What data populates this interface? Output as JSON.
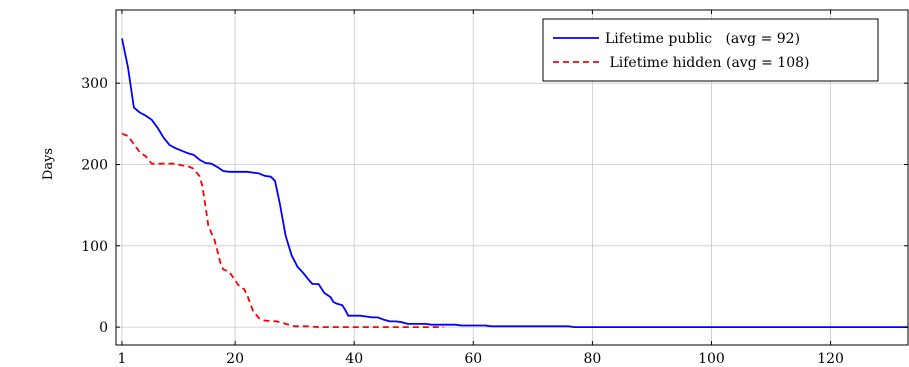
{
  "chart_data": {
    "type": "line",
    "title": "",
    "xlabel": "",
    "ylabel": "Days",
    "xlim": [
      0,
      133
    ],
    "ylim": [
      -22,
      390
    ],
    "xticks": [
      1,
      20,
      40,
      60,
      80,
      100,
      120
    ],
    "yticks": [
      0,
      100,
      200,
      300
    ],
    "grid": true,
    "legend_position": "top-right",
    "series": [
      {
        "name": "Lifetime public   (avg = 92)",
        "color": "#0000ff",
        "dash": "solid",
        "points": [
          [
            1,
            355
          ],
          [
            2,
            320
          ],
          [
            3,
            270
          ],
          [
            4,
            264
          ],
          [
            5,
            260
          ],
          [
            6,
            255
          ],
          [
            7,
            245
          ],
          [
            8,
            233
          ],
          [
            9,
            224
          ],
          [
            10,
            220
          ],
          [
            11,
            217
          ],
          [
            12,
            214
          ],
          [
            13,
            212
          ],
          [
            14,
            206
          ],
          [
            15,
            202
          ],
          [
            16,
            201
          ],
          [
            17,
            197
          ],
          [
            18,
            192
          ],
          [
            19,
            191
          ],
          [
            20,
            191
          ],
          [
            22,
            191
          ],
          [
            24,
            189
          ],
          [
            25,
            186
          ],
          [
            26,
            185
          ],
          [
            26.7,
            180
          ],
          [
            27.5,
            152
          ],
          [
            28.5,
            112
          ],
          [
            29.5,
            88
          ],
          [
            30.5,
            74
          ],
          [
            31.5,
            66
          ],
          [
            32.5,
            57
          ],
          [
            33,
            53
          ],
          [
            34,
            53
          ],
          [
            35,
            42
          ],
          [
            36,
            37
          ],
          [
            36.5,
            31
          ],
          [
            37,
            29
          ],
          [
            38,
            27
          ],
          [
            38.5,
            21
          ],
          [
            39,
            14
          ],
          [
            40,
            14
          ],
          [
            41,
            14
          ],
          [
            42,
            13
          ],
          [
            43,
            12
          ],
          [
            44,
            12
          ],
          [
            45,
            9
          ],
          [
            46,
            7
          ],
          [
            47,
            7
          ],
          [
            48,
            6
          ],
          [
            49,
            4
          ],
          [
            50,
            4
          ],
          [
            52,
            4
          ],
          [
            53,
            3
          ],
          [
            57,
            3
          ],
          [
            58,
            2
          ],
          [
            62,
            2
          ],
          [
            63,
            1
          ],
          [
            70,
            1
          ],
          [
            76,
            1
          ],
          [
            77,
            0
          ],
          [
            133,
            0
          ]
        ]
      },
      {
        "name": " Lifetime hidden (avg = 108)",
        "color": "#ff0000",
        "dash": "dashed",
        "points": [
          [
            1,
            238
          ],
          [
            2,
            235
          ],
          [
            3,
            225
          ],
          [
            4,
            215
          ],
          [
            5,
            210
          ],
          [
            6,
            201
          ],
          [
            8,
            201
          ],
          [
            10,
            201
          ],
          [
            11,
            199
          ],
          [
            12,
            198
          ],
          [
            13,
            195
          ],
          [
            14,
            186
          ],
          [
            14.5,
            174
          ],
          [
            15,
            150
          ],
          [
            15.5,
            125
          ],
          [
            16,
            116
          ],
          [
            16.5,
            108
          ],
          [
            17,
            95
          ],
          [
            17.5,
            80
          ],
          [
            18,
            71
          ],
          [
            19,
            68
          ],
          [
            20,
            58
          ],
          [
            20.5,
            52
          ],
          [
            21,
            48
          ],
          [
            21.5,
            47
          ],
          [
            22,
            40
          ],
          [
            22.5,
            30
          ],
          [
            23,
            20
          ],
          [
            24,
            11
          ],
          [
            25,
            8
          ],
          [
            27,
            7
          ],
          [
            28,
            5
          ],
          [
            29,
            3
          ],
          [
            30,
            1
          ],
          [
            32,
            1
          ],
          [
            34,
            0
          ],
          [
            36,
            0
          ],
          [
            40,
            0
          ],
          [
            50,
            0
          ],
          [
            55,
            0
          ]
        ]
      }
    ]
  }
}
